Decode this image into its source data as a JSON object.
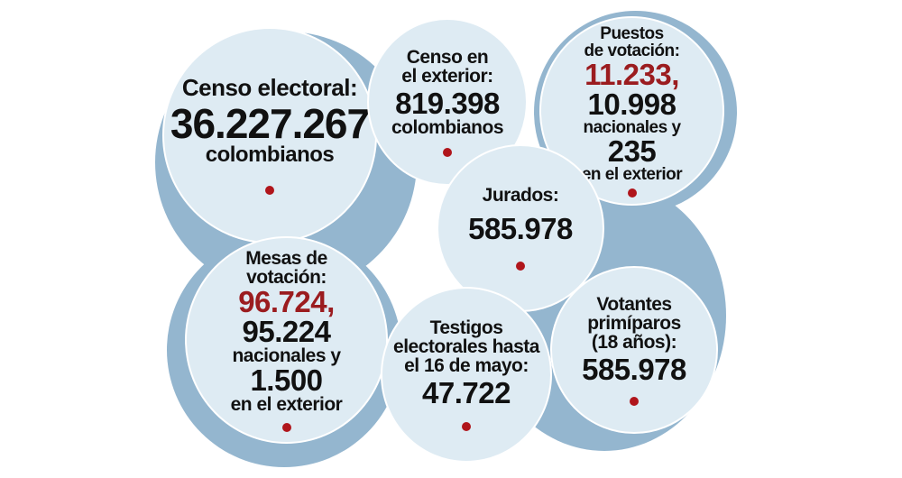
{
  "colors": {
    "bubble_fill": "#deebf3",
    "bubble_shadow": "#94b6cf",
    "highlight_red": "#9b1c1f",
    "dot_red": "#b0151b"
  },
  "bubbles": {
    "censo": {
      "label": "Censo electoral:",
      "value": "36.227.267",
      "unit": "colombianos"
    },
    "exterior": {
      "label_l1": "Censo en",
      "label_l2": "el exterior:",
      "value": "819.398",
      "unit": "colombianos"
    },
    "puestos": {
      "label_l1": "Puestos",
      "label_l2": "de votación:",
      "total": "11.233,",
      "nacionales_value": "10.998",
      "nacionales_label": "nacionales y",
      "exterior_value": "235",
      "exterior_label": "en el exterior"
    },
    "jurados": {
      "label": "Jurados:",
      "value": "585.978"
    },
    "mesas": {
      "label_l1": "Mesas de",
      "label_l2": "votación:",
      "total": "96.724,",
      "nacionales_value": "95.224",
      "nacionales_label": "nacionales y",
      "exterior_value": "1.500",
      "exterior_label": "en el exterior"
    },
    "testigos": {
      "label_l1": "Testigos",
      "label_l2": "electorales hasta",
      "label_l3": "el 16 de mayo:",
      "value": "47.722"
    },
    "votantes": {
      "label_l1": "Votantes",
      "label_l2": "primíparos",
      "label_l3": "(18 años):",
      "value": "585.978"
    }
  }
}
